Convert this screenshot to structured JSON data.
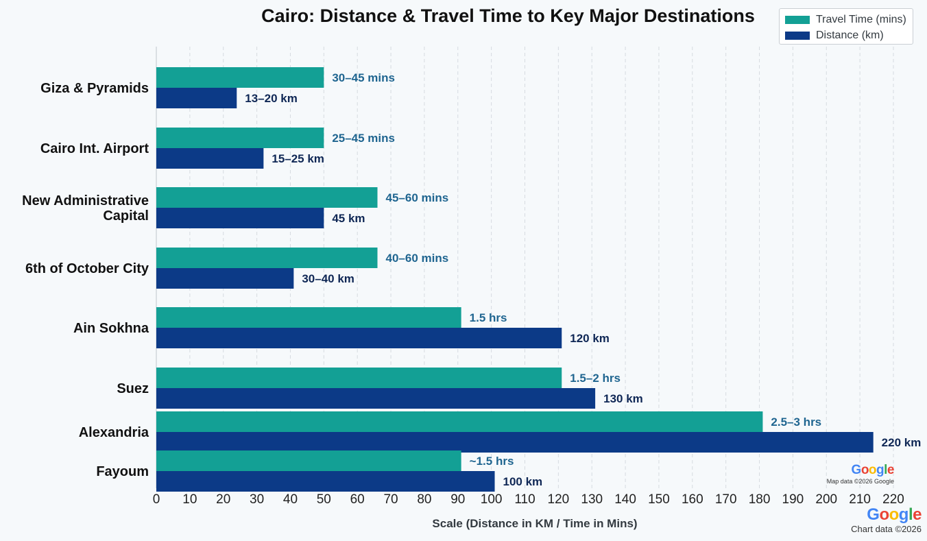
{
  "colors": {
    "travel": "#13a095",
    "distance": "#0c3a87",
    "travel_label": "#1f6590",
    "distance_label": "#0f2755",
    "grid": "#d6dbe0",
    "google_blue": "#4285F4",
    "google_red": "#EA4335",
    "google_yellow": "#FBBC05",
    "google_green": "#34A853"
  },
  "chart_data": {
    "type": "bar",
    "orientation": "horizontal",
    "title": "Cairo: Distance & Travel Time to Key Major Destinations",
    "xlabel": "Scale (Distance in KM / Time in Mins)",
    "ylabel": "",
    "xlim": [
      0,
      220
    ],
    "xticks": [
      0,
      10,
      20,
      30,
      40,
      50,
      60,
      70,
      80,
      90,
      100,
      110,
      120,
      130,
      140,
      150,
      160,
      170,
      180,
      190,
      200,
      210,
      220
    ],
    "grid": "vertical dashed",
    "legend_position": "top-right",
    "categories": [
      [
        "Giza & Pyramids"
      ],
      [
        "Cairo Int. Airport"
      ],
      [
        "New Administrative",
        "Capital"
      ],
      [
        "6th of October City"
      ],
      [
        "Ain Sokhna"
      ],
      [
        "Suez"
      ],
      [
        "Alexandria"
      ],
      [
        "Fayoum"
      ]
    ],
    "series": [
      {
        "name": "Travel Time (mins)",
        "values": [
          50,
          50,
          66,
          66,
          91,
          121,
          181,
          91
        ],
        "labels": [
          "30–45 mins",
          "25–45 mins",
          "45–60 mins",
          "40–60 mins",
          "1.5 hrs",
          "1.5–2 hrs",
          "2.5–3 hrs",
          "~1.5 hrs"
        ]
      },
      {
        "name": "Distance (km)",
        "values": [
          24,
          32,
          50,
          41,
          121,
          131,
          214,
          101
        ],
        "labels": [
          "13–20 km",
          "15–25 km",
          "45 km",
          "30–40 km",
          "120 km",
          "130 km",
          "220 km",
          "100 km"
        ]
      }
    ]
  },
  "watermarks": {
    "inner_logo": "Google",
    "inner_text": "Map data ©2026 Google",
    "outer_logo": "Google",
    "outer_text": "Chart data ©2026"
  }
}
